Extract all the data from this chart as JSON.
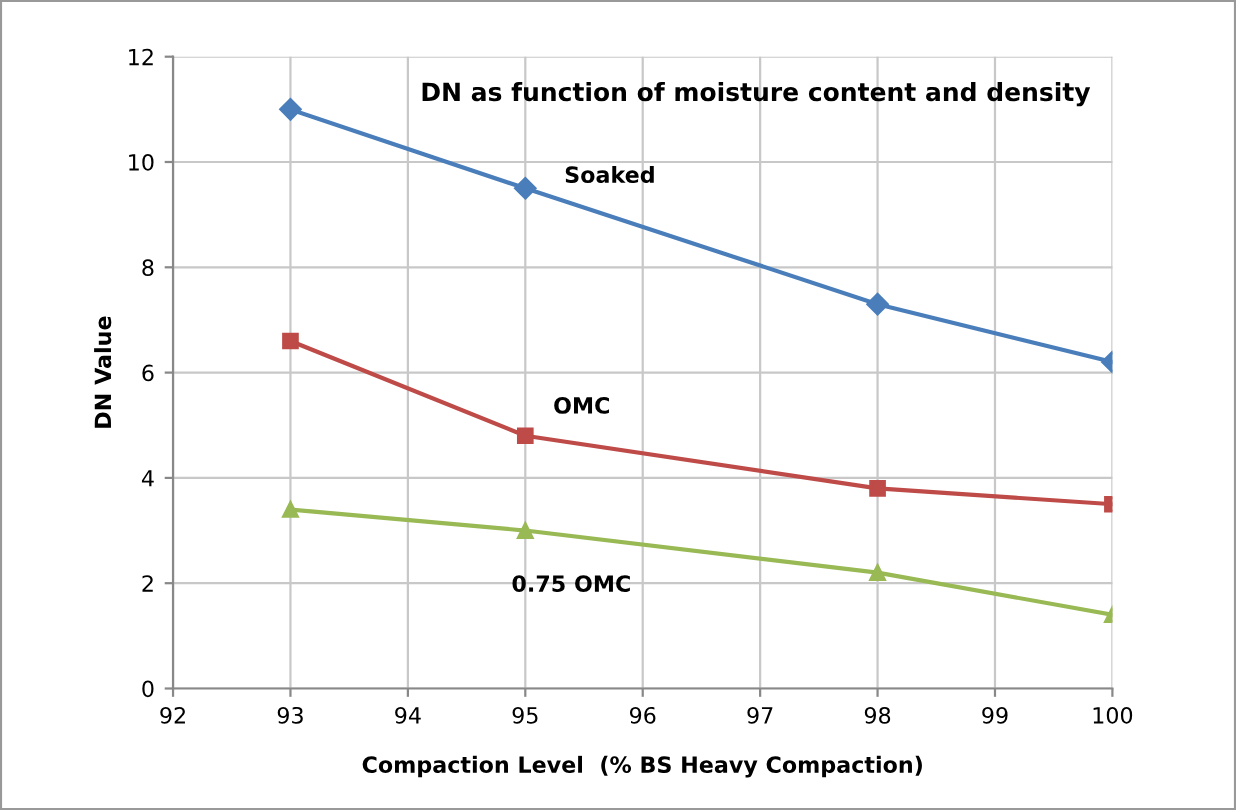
{
  "chart_data": {
    "type": "line",
    "title": "DN as function of moisture content and density",
    "xlabel": "Compaction Level  (% BS Heavy Compaction)",
    "ylabel": "DN Value",
    "x": [
      93,
      95,
      98,
      100
    ],
    "series": [
      {
        "name": "Soaked",
        "color": "#4a7ebb",
        "marker": "diamond",
        "values": [
          11.0,
          9.5,
          7.3,
          6.2
        ]
      },
      {
        "name": "OMC",
        "color": "#be4b48",
        "marker": "square",
        "values": [
          6.6,
          4.8,
          3.8,
          3.5
        ]
      },
      {
        "name": "0.75 OMC",
        "color": "#98b954",
        "marker": "triangle",
        "values": [
          3.4,
          3.0,
          2.2,
          1.4
        ]
      }
    ],
    "xlim": [
      92,
      100
    ],
    "xticks": [
      92,
      93,
      94,
      95,
      96,
      97,
      98,
      99,
      100
    ],
    "ylim": [
      0,
      12
    ],
    "yticks": [
      0,
      2,
      4,
      6,
      8,
      10,
      12
    ],
    "grid": true,
    "line_style": "solid",
    "legend": false
  }
}
